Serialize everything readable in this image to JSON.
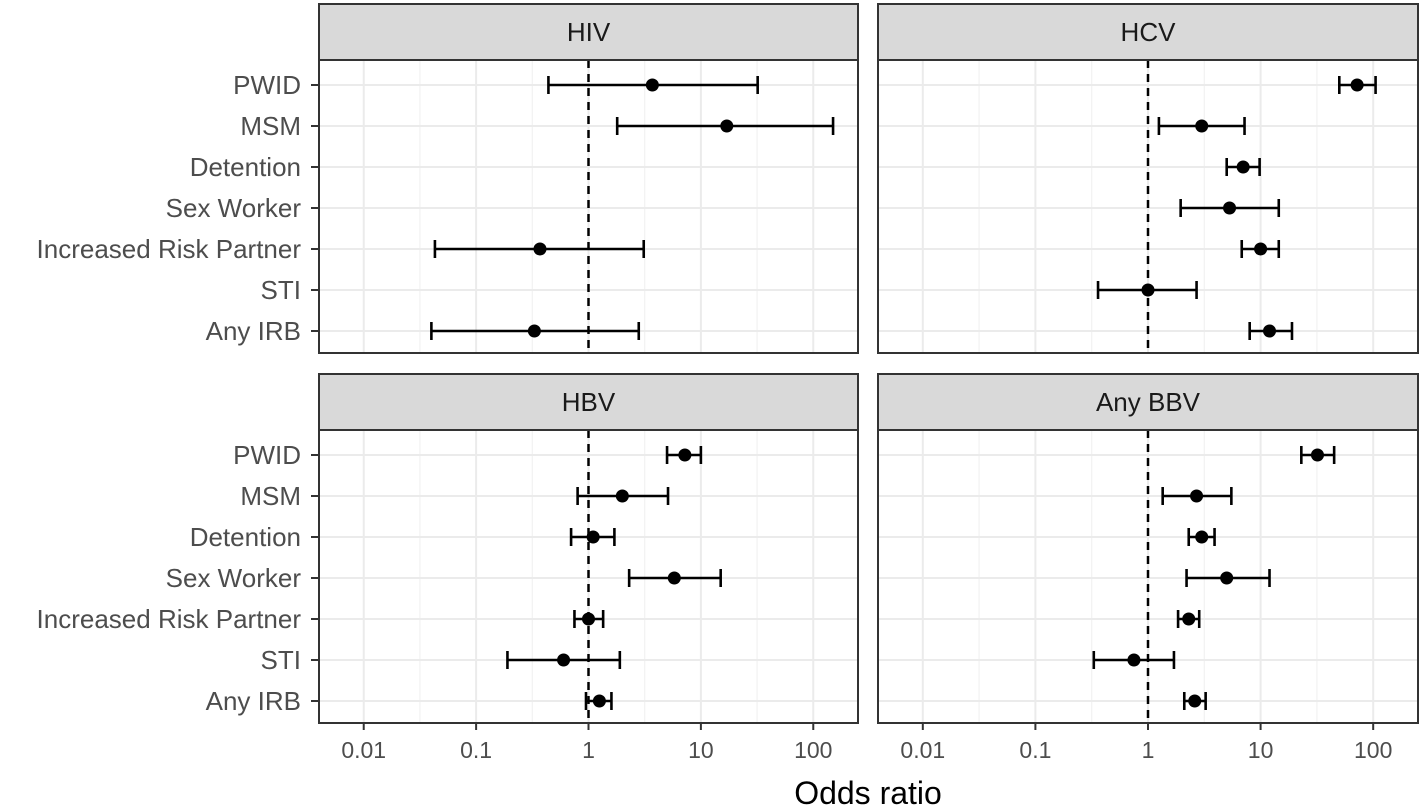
{
  "chart_data": {
    "type": "forest",
    "xlabel": "Odds ratio",
    "x_scale": "log10",
    "xlim": [
      0.004,
      250
    ],
    "x_ticks": [
      0.01,
      0.1,
      1,
      10,
      100
    ],
    "x_tick_labels": [
      "0.01",
      "0.1",
      "1",
      "10",
      "100"
    ],
    "reference_line": 1,
    "categories": [
      "PWID",
      "MSM",
      "Detention",
      "Sex Worker",
      "Increased Risk Partner",
      "STI",
      "Any IRB"
    ],
    "panels": [
      {
        "title": "HIV",
        "estimates": [
          {
            "category": "PWID",
            "or": 3.7,
            "lower": 0.44,
            "upper": 32
          },
          {
            "category": "MSM",
            "or": 17,
            "lower": 1.8,
            "upper": 150
          },
          {
            "category": "Increased Risk Partner",
            "or": 0.37,
            "lower": 0.043,
            "upper": 3.1
          },
          {
            "category": "Any IRB",
            "or": 0.33,
            "lower": 0.04,
            "upper": 2.8
          }
        ]
      },
      {
        "title": "HCV",
        "estimates": [
          {
            "category": "PWID",
            "or": 72,
            "lower": 50,
            "upper": 105
          },
          {
            "category": "MSM",
            "or": 3.0,
            "lower": 1.25,
            "upper": 7.2
          },
          {
            "category": "Detention",
            "or": 7.0,
            "lower": 5.0,
            "upper": 9.8
          },
          {
            "category": "Sex Worker",
            "or": 5.3,
            "lower": 1.95,
            "upper": 14.5
          },
          {
            "category": "Increased Risk Partner",
            "or": 10,
            "lower": 6.8,
            "upper": 14.5
          },
          {
            "category": "STI",
            "or": 1.0,
            "lower": 0.36,
            "upper": 2.7
          },
          {
            "category": "Any IRB",
            "or": 12,
            "lower": 8.0,
            "upper": 19
          }
        ]
      },
      {
        "title": "HBV",
        "estimates": [
          {
            "category": "PWID",
            "or": 7.2,
            "lower": 5.0,
            "upper": 10
          },
          {
            "category": "MSM",
            "or": 2.0,
            "lower": 0.8,
            "upper": 5.1
          },
          {
            "category": "Detention",
            "or": 1.1,
            "lower": 0.7,
            "upper": 1.7
          },
          {
            "category": "Sex Worker",
            "or": 5.8,
            "lower": 2.3,
            "upper": 15
          },
          {
            "category": "Increased Risk Partner",
            "or": 1.0,
            "lower": 0.75,
            "upper": 1.35
          },
          {
            "category": "STI",
            "or": 0.6,
            "lower": 0.19,
            "upper": 1.9
          },
          {
            "category": "Any IRB",
            "or": 1.25,
            "lower": 0.95,
            "upper": 1.6
          }
        ]
      },
      {
        "title": "Any BBV",
        "estimates": [
          {
            "category": "PWID",
            "or": 32,
            "lower": 23,
            "upper": 45
          },
          {
            "category": "MSM",
            "or": 2.7,
            "lower": 1.35,
            "upper": 5.5
          },
          {
            "category": "Detention",
            "or": 3.0,
            "lower": 2.3,
            "upper": 3.9
          },
          {
            "category": "Sex Worker",
            "or": 5.0,
            "lower": 2.2,
            "upper": 12
          },
          {
            "category": "Increased Risk Partner",
            "or": 2.3,
            "lower": 1.85,
            "upper": 2.85
          },
          {
            "category": "STI",
            "or": 0.75,
            "lower": 0.33,
            "upper": 1.7
          },
          {
            "category": "Any IRB",
            "or": 2.6,
            "lower": 2.1,
            "upper": 3.25
          }
        ]
      }
    ]
  }
}
